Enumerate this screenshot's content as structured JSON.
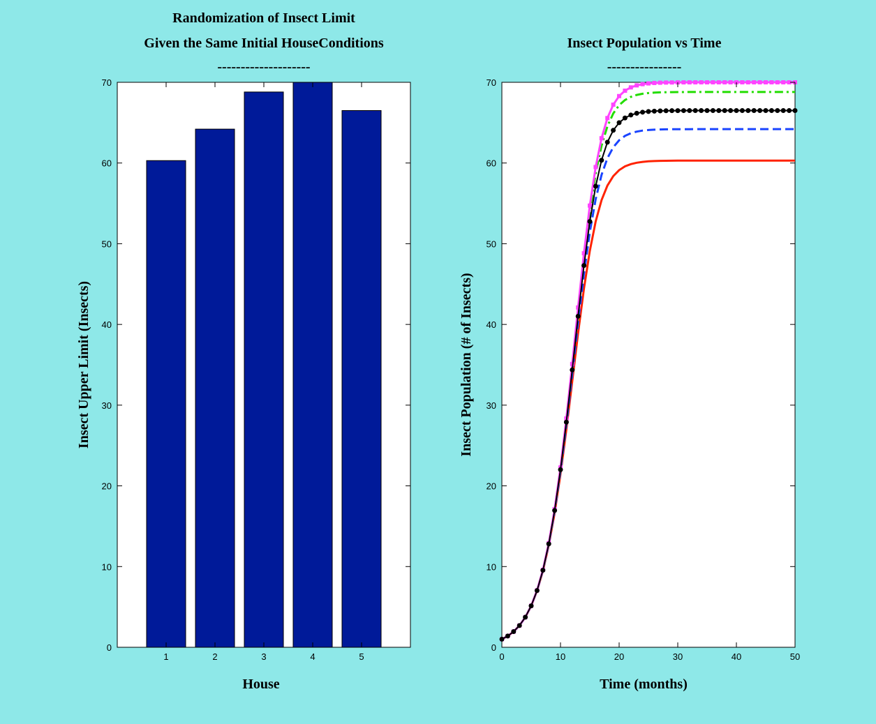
{
  "figure": {
    "background": "#8ee8e8"
  },
  "chart_data": [
    {
      "type": "bar",
      "title_lines": [
        "Randomization of Insect Limit",
        "Given the Same Initial HouseConditions",
        "--------------------"
      ],
      "xlabel": "House",
      "ylabel": "Insect Upper Limit (Insects)",
      "categories": [
        "1",
        "2",
        "3",
        "4",
        "5"
      ],
      "values": [
        60.3,
        64.2,
        68.8,
        70.0,
        66.5
      ],
      "ylim": [
        0,
        70
      ],
      "xlim": [
        0,
        6
      ],
      "yticks": [
        0,
        10,
        20,
        30,
        40,
        50,
        60,
        70
      ],
      "bar_color": "#001a99",
      "grid": false
    },
    {
      "type": "line",
      "title_lines": [
        "Insect Population vs Time",
        "----------------"
      ],
      "xlabel": "Time (months)",
      "ylabel": "Insect Population (# of Insects)",
      "xlim": [
        0,
        50
      ],
      "ylim": [
        0,
        70
      ],
      "xticks": [
        0,
        10,
        20,
        30,
        40,
        50
      ],
      "yticks": [
        0,
        10,
        20,
        30,
        40,
        50,
        60,
        70
      ],
      "grid": false,
      "initial_population": 1,
      "growth_rate": 0.4,
      "series": [
        {
          "limit": 60.3,
          "color": "#ff2200",
          "style": "solid",
          "marker": "none",
          "width": 3
        },
        {
          "limit": 64.2,
          "color": "#1a44ff",
          "style": "dashed",
          "marker": "none",
          "width": 3
        },
        {
          "limit": 68.8,
          "color": "#22dd00",
          "style": "dashdot",
          "marker": "none",
          "width": 3
        },
        {
          "limit": 70.0,
          "color": "#ff44ff",
          "style": "solid",
          "marker": "square",
          "width": 3
        },
        {
          "limit": 66.5,
          "color": "#000000",
          "style": "solid",
          "marker": "dot",
          "width": 2
        }
      ]
    }
  ]
}
